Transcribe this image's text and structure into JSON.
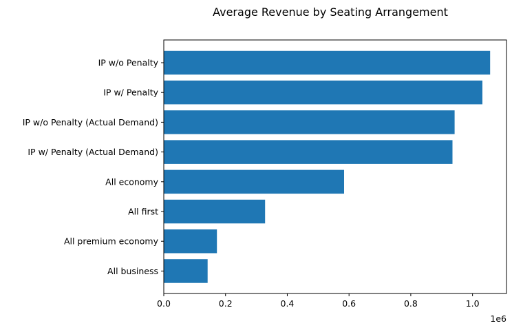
{
  "chart_data": {
    "type": "bar",
    "orientation": "horizontal",
    "title": "Average Revenue by Seating Arrangement",
    "xlabel": "",
    "ylabel": "",
    "x_offset_label": "1e6",
    "xlim": [
      0,
      1.11
    ],
    "xticks": [
      "0.0",
      "0.2",
      "0.4",
      "0.6",
      "0.8",
      "1.0"
    ],
    "grid": false,
    "color": "#1f77b4",
    "categories": [
      "IP w/o Penalty",
      "IP w/ Penalty",
      "IP w/o Penalty (Actual Demand)",
      "IP w/ Penalty (Actual Demand)",
      "All economy",
      "All first",
      "All premium economy",
      "All business"
    ],
    "values": [
      1.057,
      1.032,
      0.942,
      0.935,
      0.584,
      0.328,
      0.172,
      0.142
    ]
  }
}
